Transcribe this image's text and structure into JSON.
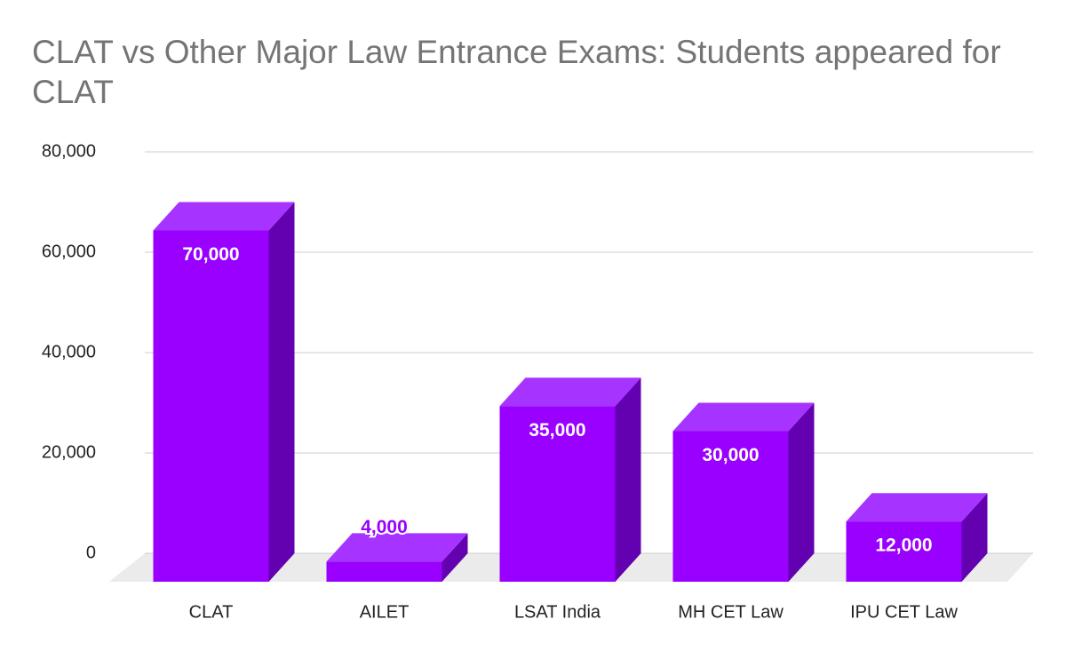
{
  "chart_data": {
    "type": "bar3d",
    "title": "CLAT vs Other Major Law Entrance Exams: Students appeared for CLAT",
    "categories": [
      "CLAT",
      "AILET",
      "LSAT India",
      "MH CET Law",
      "IPU CET Law"
    ],
    "values": [
      70000,
      4000,
      35000,
      30000,
      12000
    ],
    "value_labels": [
      "70,000",
      "4,000",
      "35,000",
      "30,000",
      "12,000"
    ],
    "color": "#9900ff",
    "ylim": [
      0,
      80000
    ],
    "yticks": [
      0,
      {
        "value": 20000,
        "label": "20,000"
      },
      {
        "value": 40000,
        "label": "40,000"
      },
      {
        "value": 60000,
        "label": "60,000"
      },
      {
        "value": 80000,
        "label": "80,000"
      }
    ],
    "grid": true
  }
}
